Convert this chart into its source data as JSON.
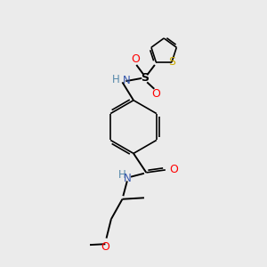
{
  "background_color": "#ebebeb",
  "bond_color": "#000000",
  "N_color": "#3355aa",
  "O_color": "#ff0000",
  "S_thio_color": "#ccaa00",
  "H_color": "#5588aa",
  "figsize": [
    3.0,
    3.0
  ],
  "dpi": 100,
  "xlim": [
    0,
    10
  ],
  "ylim": [
    0,
    10
  ]
}
